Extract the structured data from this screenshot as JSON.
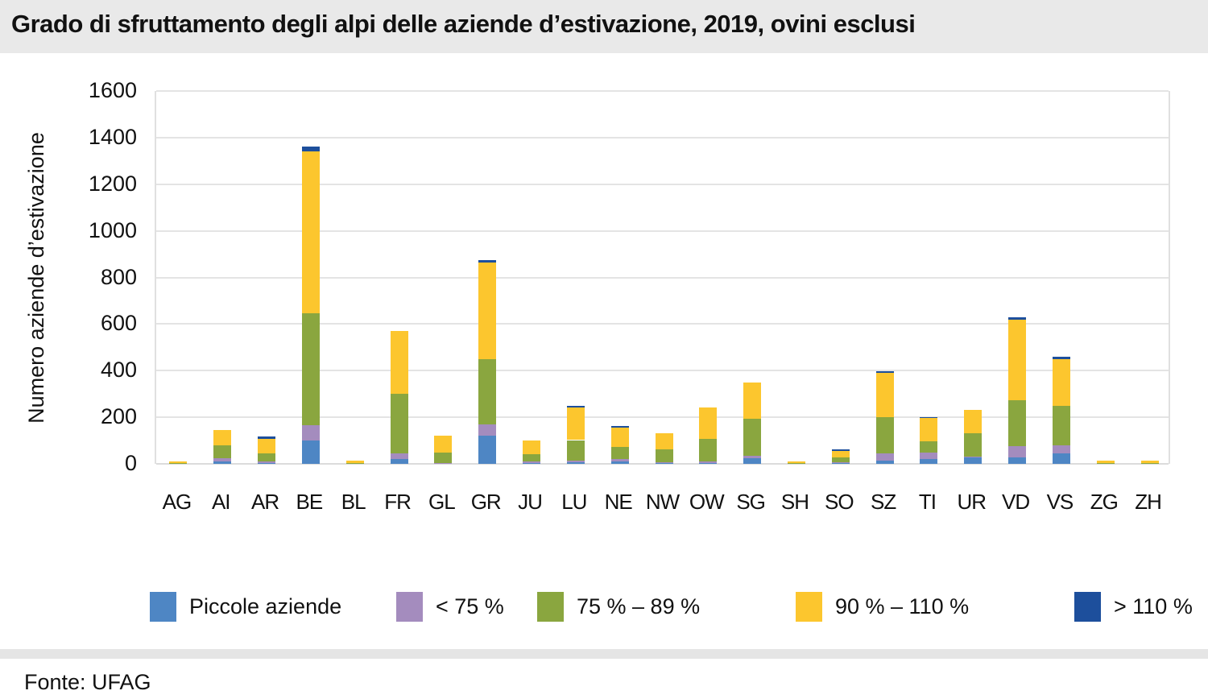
{
  "title": "Grado di sfruttamento degli alpi delle aziende d’estivazione, 2019, ovini esclusi",
  "footer": {
    "source_label": "Fonte: UFAG"
  },
  "colors": {
    "small_farms_blue": "#4e86c4",
    "lt75_purple": "#a48cbe",
    "p75_89_green": "#8aa63f",
    "p90_110_yellow": "#fcc62e",
    "gt110_navy": "#1d4f9c",
    "gridline": "#e4e4e4",
    "band_gray": "#e9e9e9"
  },
  "chart_data": {
    "type": "bar",
    "stacked": true,
    "title": "Grado di sfruttamento degli alpi delle aziende d’estivazione, 2019, ovini esclusi",
    "xlabel": "",
    "ylabel": "Numero aziende d’estivazione",
    "ylim": [
      0,
      1600
    ],
    "ytick_step": 200,
    "yticks": [
      0,
      200,
      400,
      600,
      800,
      1000,
      1200,
      1400,
      1600
    ],
    "grid": true,
    "legend_position": "bottom",
    "categories": [
      "AG",
      "AI",
      "AR",
      "BE",
      "BL",
      "FR",
      "GL",
      "GR",
      "JU",
      "LU",
      "NE",
      "NW",
      "OW",
      "SG",
      "SH",
      "SO",
      "SZ",
      "TI",
      "UR",
      "VD",
      "VS",
      "ZG",
      "ZH"
    ],
    "series": [
      {
        "name": "Piccole aziende",
        "color": "#4e86c4",
        "values": [
          0,
          12,
          5,
          100,
          0,
          20,
          3,
          120,
          4,
          8,
          9,
          6,
          5,
          25,
          0,
          4,
          15,
          20,
          27,
          26,
          44,
          0,
          0
        ]
      },
      {
        "name": "< 75 %",
        "color": "#a48cbe",
        "values": [
          0,
          11,
          5,
          65,
          0,
          25,
          2,
          48,
          5,
          6,
          12,
          2,
          5,
          8,
          0,
          2,
          30,
          27,
          5,
          50,
          34,
          0,
          0
        ]
      },
      {
        "name": "75 % – 89 %",
        "color": "#8aa63f",
        "values": [
          2,
          55,
          35,
          480,
          3,
          255,
          45,
          280,
          33,
          88,
          52,
          55,
          96,
          160,
          2,
          20,
          155,
          50,
          100,
          197,
          170,
          2,
          2
        ]
      },
      {
        "name": "90 % – 110 %",
        "color": "#fcc62e",
        "values": [
          10,
          67,
          62,
          695,
          12,
          270,
          70,
          417,
          60,
          140,
          82,
          69,
          135,
          157,
          10,
          28,
          190,
          100,
          101,
          347,
          202,
          12,
          12
        ]
      },
      {
        "name": "> 110 %",
        "color": "#1d4f9c",
        "values": [
          0,
          0,
          10,
          20,
          0,
          0,
          0,
          10,
          0,
          7,
          7,
          0,
          0,
          0,
          0,
          8,
          8,
          5,
          0,
          10,
          10,
          0,
          0
        ]
      }
    ],
    "legend_x_positions": [
      186,
      492,
      667,
      988,
      1334
    ]
  }
}
